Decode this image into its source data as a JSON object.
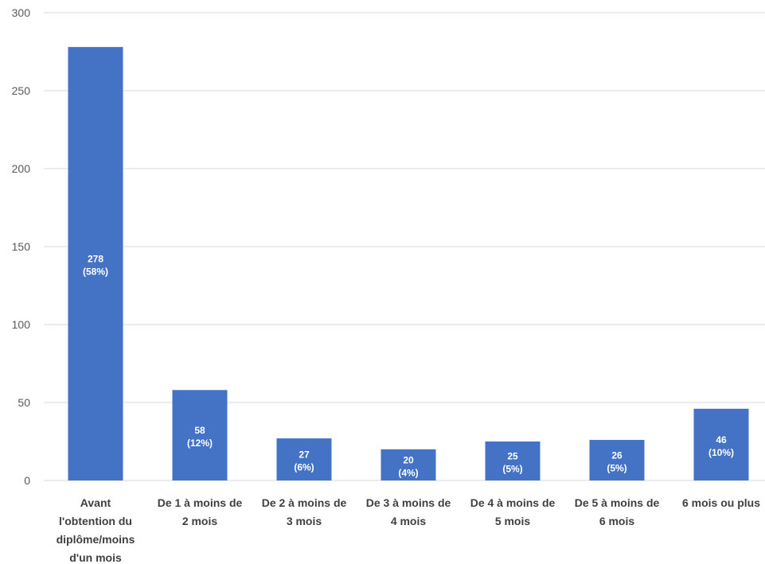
{
  "chart_data": {
    "type": "bar",
    "categories": [
      "Avant l'obtention du diplôme/moins d'un mois",
      "De 1 à moins de 2 mois",
      "De 2 à moins de 3 mois",
      "De 3 à moins de 4 mois",
      "De 4 à moins de 5 mois",
      "De 5 à moins de 6 mois",
      "6 mois ou plus"
    ],
    "category_lines": [
      [
        "Avant",
        "l'obtention du",
        "diplôme/moins",
        "d'un mois"
      ],
      [
        "De 1 à moins de",
        "2 mois"
      ],
      [
        "De 2 à moins de",
        "3 mois"
      ],
      [
        "De 3 à moins de",
        "4 mois"
      ],
      [
        "De 4 à moins de",
        "5 mois"
      ],
      [
        "De 5 à moins de",
        "6 mois"
      ],
      [
        "6 mois ou plus"
      ]
    ],
    "values": [
      278,
      58,
      27,
      20,
      25,
      26,
      46
    ],
    "percent_labels": [
      "(58%)",
      "(12%)",
      "(6%)",
      "(4%)",
      "(5%)",
      "(5%)",
      "(10%)"
    ],
    "ylim": [
      0,
      300
    ],
    "yticks": [
      0,
      50,
      100,
      150,
      200,
      250,
      300
    ],
    "grid": true,
    "title": "",
    "xlabel": "",
    "ylabel": "",
    "colors": {
      "bar": "#4472C4",
      "grid": "#D9D9D9",
      "label": "#FFFFFF"
    }
  }
}
